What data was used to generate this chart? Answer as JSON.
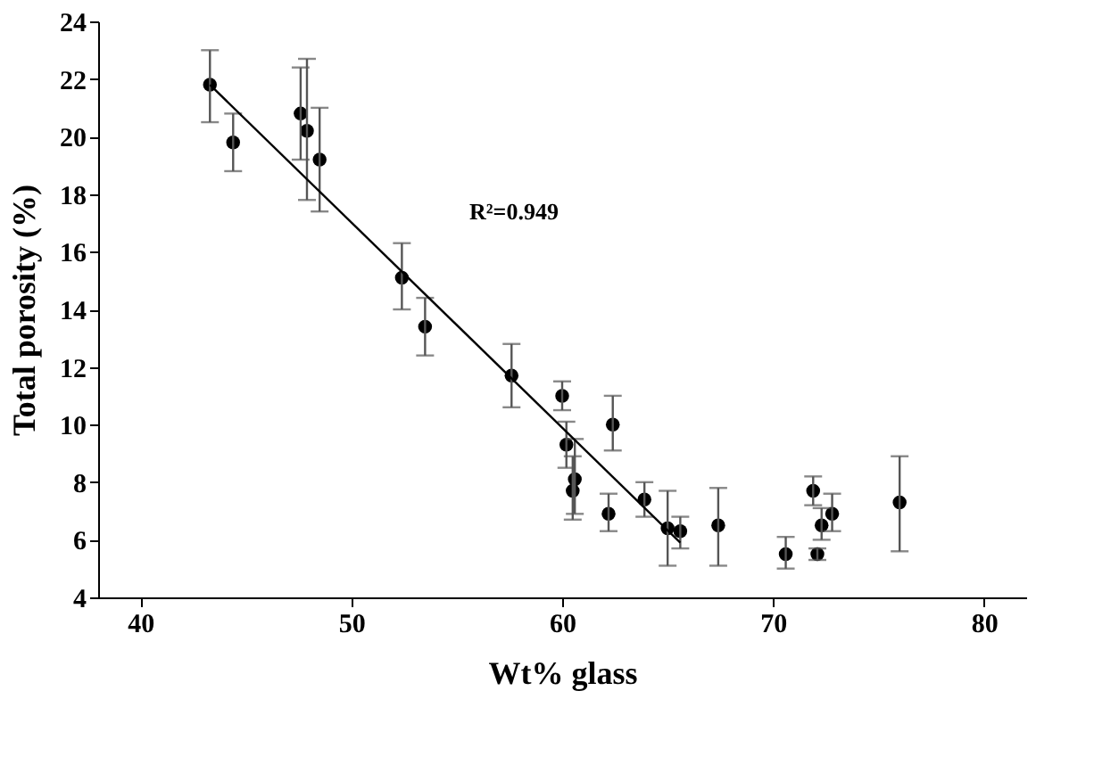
{
  "chart_data": {
    "type": "scatter",
    "xlabel": "Wt% glass",
    "ylabel": "Total porosity (%)",
    "xlim": [
      38,
      82
    ],
    "xticks": [
      40,
      50,
      60,
      70,
      80
    ],
    "ylim": [
      4,
      24
    ],
    "yticks": [
      4,
      6,
      8,
      10,
      12,
      14,
      16,
      18,
      20,
      22,
      24
    ],
    "grid": false,
    "series": [
      {
        "color": "#000000",
        "marker": "circle",
        "x": [
          43.3,
          44.4,
          47.6,
          47.9,
          48.5,
          52.4,
          53.5,
          57.6,
          60.0,
          60.2,
          60.5,
          60.6,
          62.2,
          62.4,
          63.9,
          65.0,
          65.6,
          67.4,
          70.6,
          71.9,
          72.1,
          72.3,
          72.8,
          76.0
        ],
        "values": [
          21.8,
          19.8,
          20.8,
          20.2,
          19.2,
          15.1,
          13.4,
          11.7,
          11.0,
          9.3,
          7.7,
          8.1,
          6.9,
          10.0,
          7.4,
          6.4,
          6.3,
          6.5,
          5.5,
          7.7,
          5.5,
          6.5,
          6.9,
          7.3
        ],
        "errors": [
          [
            20.5,
            23.0
          ],
          [
            18.8,
            20.8
          ],
          [
            19.2,
            22.4
          ],
          [
            17.8,
            22.7
          ],
          [
            17.4,
            21.0
          ],
          [
            14.0,
            16.3
          ],
          [
            12.4,
            14.4
          ],
          [
            10.6,
            12.8
          ],
          [
            10.5,
            11.5
          ],
          [
            8.5,
            10.1
          ],
          [
            6.7,
            8.9
          ],
          [
            6.9,
            9.5
          ],
          [
            6.3,
            7.6
          ],
          [
            9.1,
            11.0
          ],
          [
            6.8,
            8.0
          ],
          [
            5.1,
            7.7
          ],
          [
            5.7,
            6.8
          ],
          [
            5.1,
            7.8
          ],
          [
            5.0,
            6.1
          ],
          [
            7.2,
            8.2
          ],
          [
            5.3,
            5.7
          ],
          [
            6.0,
            7.1
          ],
          [
            6.3,
            7.6
          ],
          [
            5.6,
            8.9
          ]
        ]
      },
      {
        "type": "line",
        "color": "#000000",
        "marker": "none",
        "x": [
          43.3,
          65.6
        ],
        "values": [
          21.8,
          5.9
        ],
        "line_style": "solid"
      }
    ],
    "annotations": [
      "R²=0.949"
    ]
  }
}
